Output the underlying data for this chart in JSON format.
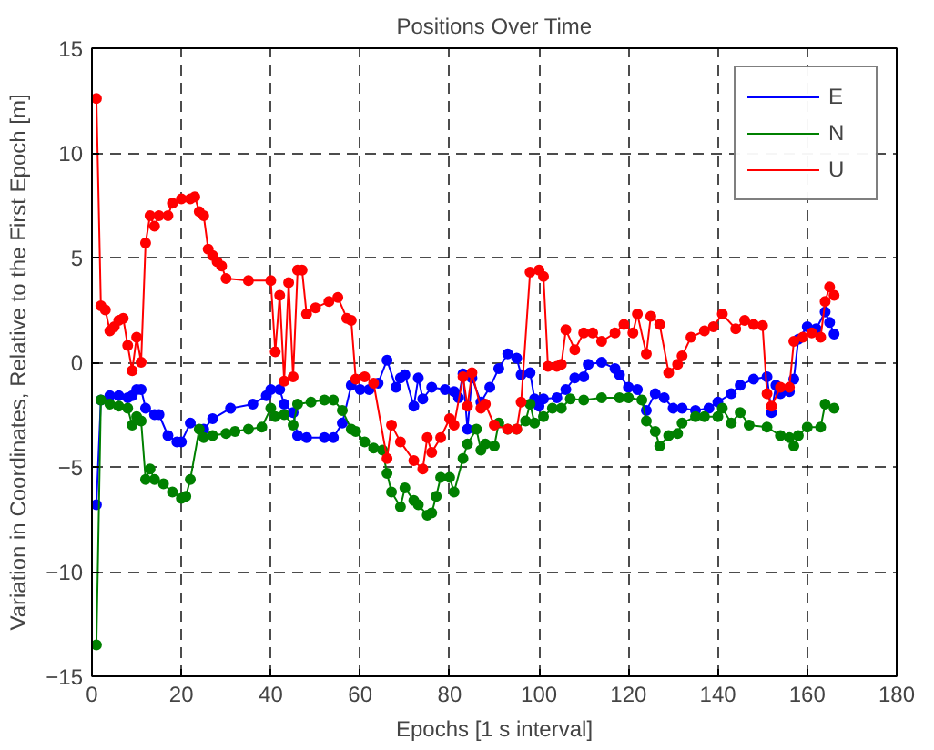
{
  "chart_data": {
    "type": "line",
    "title": "Positions Over Time",
    "xlabel": "Epochs [1 s interval]",
    "ylabel": "Variation in Coordinates, Relative to the First Epoch [m]",
    "xlim": [
      0,
      180
    ],
    "ylim": [
      -15,
      15
    ],
    "xticks": [
      0,
      20,
      40,
      60,
      80,
      100,
      120,
      140,
      160,
      180
    ],
    "yticks": [
      -15,
      -10,
      -5,
      0,
      5,
      10,
      15
    ],
    "grid": true,
    "legend": "top right",
    "marker": "circle",
    "line_style": "solid",
    "series": [
      {
        "name": "E",
        "color": "#0000ff",
        "x": [
          1,
          2,
          4,
          6,
          8,
          9,
          10,
          11,
          12,
          14,
          15,
          17,
          19,
          20,
          22,
          25,
          27,
          31,
          36,
          39,
          40,
          42,
          43,
          45,
          46,
          48,
          52,
          54,
          56,
          58,
          60,
          62,
          64,
          66,
          68,
          69,
          70,
          72,
          73,
          74,
          76,
          79,
          81,
          82,
          83,
          84,
          85,
          87,
          89,
          91,
          93,
          95,
          96,
          98,
          99,
          100,
          101,
          104,
          106,
          108,
          110,
          111,
          114,
          117,
          118,
          120,
          122,
          124,
          126,
          128,
          130,
          132,
          135,
          138,
          140,
          143,
          145,
          148,
          151,
          152,
          153,
          154,
          156,
          157,
          158,
          160,
          162,
          164,
          165,
          166
        ],
        "values": [
          -6.8,
          -1.8,
          -1.6,
          -1.6,
          -1.7,
          -1.6,
          -1.3,
          -1.3,
          -2.2,
          -2.5,
          -2.5,
          -3.5,
          -3.8,
          -3.8,
          -2.9,
          -3.2,
          -2.7,
          -2.2,
          -2.0,
          -1.6,
          -1.3,
          -1.3,
          -2.0,
          -2.4,
          -3.5,
          -3.6,
          -3.6,
          -3.6,
          -2.9,
          -1.1,
          -1.3,
          -1.3,
          -1.0,
          0.1,
          -1.2,
          -0.75,
          -0.6,
          -2.1,
          -0.75,
          -1.75,
          -1.2,
          -1.3,
          -1.4,
          -1.7,
          -0.55,
          -3.2,
          -0.75,
          -1.9,
          -1.2,
          -0.3,
          0.4,
          0.2,
          -0.6,
          -0.5,
          -1.75,
          -2.1,
          -1.75,
          -1.7,
          -1.3,
          -0.75,
          -0.7,
          -0.1,
          0.0,
          -0.3,
          -0.6,
          -1.2,
          -1.3,
          -2.3,
          -1.5,
          -1.7,
          -2.2,
          -2.2,
          -2.3,
          -2.2,
          -1.9,
          -1.5,
          -1.1,
          -0.8,
          -0.7,
          -2.4,
          -1.1,
          -1.5,
          -1.4,
          -0.8,
          1.1,
          1.7,
          1.6,
          2.4,
          1.9,
          1.35
        ]
      },
      {
        "name": "N",
        "color": "#008000",
        "x": [
          1,
          2,
          4,
          6,
          8,
          9,
          10,
          11,
          12,
          13,
          14,
          16,
          18,
          20,
          21,
          22,
          24,
          25,
          27,
          30,
          32,
          35,
          38,
          40,
          41,
          43,
          45,
          46,
          49,
          52,
          54,
          56,
          58,
          59,
          61,
          63,
          65,
          66,
          67,
          69,
          70,
          72,
          73,
          75,
          76,
          77,
          78,
          80,
          81,
          83,
          84,
          86,
          87,
          88,
          90,
          91,
          93,
          95,
          97,
          98,
          99,
          101,
          103,
          105,
          107,
          110,
          114,
          118,
          120,
          123,
          124,
          126,
          127,
          129,
          131,
          132,
          135,
          137,
          140,
          141,
          143,
          145,
          147,
          151,
          154,
          156,
          157,
          158,
          160,
          163,
          164,
          166
        ],
        "values": [
          -13.5,
          -1.8,
          -2.0,
          -2.1,
          -2.2,
          -3.0,
          -2.6,
          -2.8,
          -5.6,
          -5.1,
          -5.6,
          -5.8,
          -6.2,
          -6.5,
          -6.4,
          -5.6,
          -3.2,
          -3.6,
          -3.5,
          -3.4,
          -3.3,
          -3.2,
          -3.1,
          -2.2,
          -2.6,
          -2.5,
          -3.0,
          -2.0,
          -1.9,
          -1.8,
          -1.8,
          -2.3,
          -3.2,
          -3.3,
          -3.8,
          -4.1,
          -4.2,
          -5.3,
          -6.2,
          -6.9,
          -6.0,
          -6.6,
          -6.8,
          -7.3,
          -7.2,
          -6.4,
          -5.5,
          -5.5,
          -6.2,
          -4.6,
          -3.9,
          -3.2,
          -4.2,
          -3.9,
          -4.0,
          -2.9,
          -3.2,
          -3.2,
          -2.8,
          -2.0,
          -2.9,
          -2.6,
          -2.2,
          -2.2,
          -1.75,
          -1.8,
          -1.7,
          -1.7,
          -1.7,
          -1.8,
          -2.8,
          -3.3,
          -4.0,
          -3.5,
          -3.4,
          -2.9,
          -2.6,
          -2.6,
          -2.6,
          -2.2,
          -2.9,
          -2.4,
          -3.0,
          -3.1,
          -3.5,
          -3.6,
          -4.0,
          -3.5,
          -3.1,
          -3.1,
          -2.0,
          -2.2
        ]
      },
      {
        "name": "U",
        "color": "#ff0000",
        "x": [
          1,
          2,
          3,
          4,
          5,
          6,
          7,
          8,
          9,
          10,
          11,
          12,
          13,
          14,
          15,
          17,
          18,
          20,
          22,
          23,
          24,
          25,
          26,
          27,
          28,
          29,
          30,
          35,
          40,
          41,
          42,
          43,
          44,
          45,
          46,
          47,
          48,
          50,
          53,
          55,
          57,
          58,
          59,
          61,
          63,
          66,
          67,
          69,
          72,
          74,
          75,
          76,
          78,
          80,
          81,
          83,
          84,
          85,
          87,
          88,
          90,
          93,
          95,
          96,
          98,
          100,
          101,
          102,
          104,
          105,
          106,
          108,
          110,
          112,
          114,
          117,
          119,
          121,
          122,
          124,
          125,
          127,
          129,
          131,
          132,
          134,
          137,
          139,
          141,
          144,
          146,
          148,
          150,
          151,
          152,
          154,
          156,
          157,
          159,
          161,
          163,
          164,
          165,
          166
        ],
        "values": [
          12.6,
          2.7,
          2.5,
          1.5,
          1.7,
          2.0,
          2.1,
          0.8,
          -0.4,
          1.2,
          0.0,
          5.7,
          7.0,
          6.5,
          7.0,
          7.0,
          7.6,
          7.8,
          7.8,
          7.9,
          7.2,
          7.0,
          5.4,
          5.1,
          4.8,
          4.6,
          4.0,
          3.9,
          3.9,
          0.5,
          3.2,
          -0.9,
          3.8,
          -0.7,
          4.4,
          4.4,
          2.3,
          2.6,
          2.9,
          3.1,
          2.1,
          2.0,
          -0.8,
          -0.7,
          -1.0,
          -4.6,
          -3.0,
          -3.8,
          -4.7,
          -5.1,
          -3.6,
          -4.3,
          -3.6,
          -2.7,
          -3.0,
          -0.7,
          -2.1,
          -0.5,
          -2.2,
          -2.0,
          -3.0,
          -3.2,
          -3.2,
          -1.9,
          4.3,
          4.4,
          4.1,
          -0.2,
          -0.2,
          -0.1,
          1.55,
          0.6,
          1.4,
          1.4,
          1.0,
          1.4,
          1.8,
          1.4,
          2.3,
          0.4,
          2.2,
          1.8,
          -0.5,
          -0.1,
          0.3,
          1.2,
          1.5,
          1.7,
          2.3,
          1.6,
          2.0,
          1.8,
          1.75,
          -1.5,
          -2.1,
          -1.2,
          -1.2,
          1.0,
          1.2,
          1.4,
          1.2,
          2.9,
          3.6,
          3.2
        ]
      }
    ]
  }
}
